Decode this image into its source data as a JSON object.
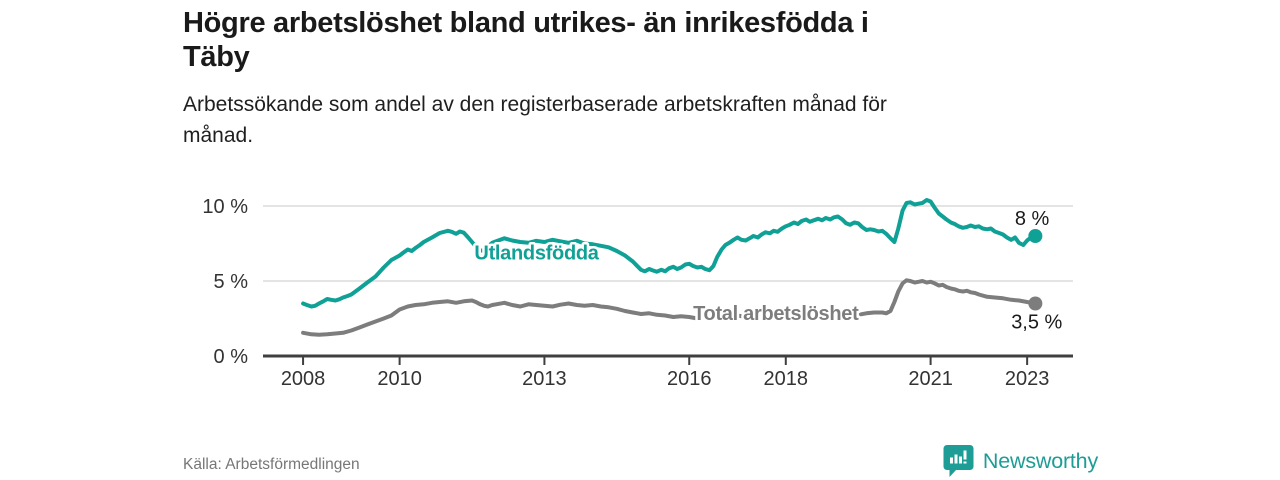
{
  "header": {
    "title_lines": [
      "Högre arbetslöshet bland utrikes- än inrikesfödda i",
      "Täby"
    ],
    "subtitle_lines": [
      "Arbetssökande som andel av den registerbaserade arbetskraften månad för",
      "månad."
    ]
  },
  "chart_data": {
    "type": "line",
    "title": "Högre arbetslöshet bland utrikes- än inrikesfödda i Täby",
    "xlabel": "",
    "ylabel": "",
    "xlim": [
      2007.17,
      2023.95
    ],
    "ylim": [
      0,
      10
    ],
    "grid": "horizontal-only",
    "legend_position": "inline-labels",
    "yticks": [
      {
        "value": 0,
        "label": "0 %"
      },
      {
        "value": 5,
        "label": "5 %"
      },
      {
        "value": 10,
        "label": "10 %"
      }
    ],
    "xticks": [
      {
        "value": 2008,
        "label": "2008"
      },
      {
        "value": 2010,
        "label": "2010"
      },
      {
        "value": 2013,
        "label": "2013"
      },
      {
        "value": 2016,
        "label": "2016"
      },
      {
        "value": 2018,
        "label": "2018"
      },
      {
        "value": 2021,
        "label": "2021"
      },
      {
        "value": 2023,
        "label": "2023"
      }
    ],
    "series": [
      {
        "name": "Total arbetslöshet",
        "color": "#7d7d7d",
        "inline_label": {
          "text": "Total arbetslöshet",
          "x": 2016.08,
          "y": 2.4,
          "anchor": "start"
        },
        "end_label": {
          "text": "3,5 %",
          "dx": 27,
          "dy": 25,
          "anchor": "end"
        },
        "end_value": 3.5,
        "points": [
          [
            2008.0,
            1.55
          ],
          [
            2008.17,
            1.45
          ],
          [
            2008.33,
            1.42
          ],
          [
            2008.5,
            1.45
          ],
          [
            2008.67,
            1.5
          ],
          [
            2008.83,
            1.55
          ],
          [
            2009.0,
            1.7
          ],
          [
            2009.17,
            1.9
          ],
          [
            2009.33,
            2.1
          ],
          [
            2009.5,
            2.3
          ],
          [
            2009.67,
            2.5
          ],
          [
            2009.83,
            2.7
          ],
          [
            2010.0,
            3.1
          ],
          [
            2010.17,
            3.3
          ],
          [
            2010.33,
            3.4
          ],
          [
            2010.5,
            3.45
          ],
          [
            2010.67,
            3.55
          ],
          [
            2010.83,
            3.6
          ],
          [
            2011.0,
            3.65
          ],
          [
            2011.17,
            3.55
          ],
          [
            2011.33,
            3.65
          ],
          [
            2011.5,
            3.7
          ],
          [
            2011.58,
            3.6
          ],
          [
            2011.67,
            3.45
          ],
          [
            2011.75,
            3.35
          ],
          [
            2011.83,
            3.3
          ],
          [
            2011.92,
            3.4
          ],
          [
            2012.0,
            3.45
          ],
          [
            2012.17,
            3.55
          ],
          [
            2012.33,
            3.4
          ],
          [
            2012.5,
            3.3
          ],
          [
            2012.67,
            3.45
          ],
          [
            2012.83,
            3.4
          ],
          [
            2013.0,
            3.35
          ],
          [
            2013.17,
            3.3
          ],
          [
            2013.33,
            3.42
          ],
          [
            2013.5,
            3.5
          ],
          [
            2013.67,
            3.4
          ],
          [
            2013.83,
            3.35
          ],
          [
            2014.0,
            3.4
          ],
          [
            2014.17,
            3.3
          ],
          [
            2014.33,
            3.25
          ],
          [
            2014.5,
            3.15
          ],
          [
            2014.67,
            3.0
          ],
          [
            2014.83,
            2.9
          ],
          [
            2015.0,
            2.8
          ],
          [
            2015.17,
            2.85
          ],
          [
            2015.33,
            2.75
          ],
          [
            2015.5,
            2.7
          ],
          [
            2015.67,
            2.6
          ],
          [
            2015.83,
            2.65
          ],
          [
            2016.0,
            2.6
          ],
          [
            2016.17,
            2.5
          ],
          [
            2016.33,
            2.65
          ],
          [
            2016.5,
            2.55
          ],
          [
            2016.67,
            2.6
          ],
          [
            2016.83,
            2.65
          ],
          [
            2017.0,
            2.7
          ],
          [
            2017.17,
            2.6
          ],
          [
            2017.33,
            2.65
          ],
          [
            2017.5,
            2.6
          ],
          [
            2017.67,
            2.65
          ],
          [
            2017.83,
            2.6
          ],
          [
            2018.0,
            2.65
          ],
          [
            2018.17,
            2.6
          ],
          [
            2018.33,
            2.65
          ],
          [
            2018.5,
            2.6
          ],
          [
            2018.67,
            2.7
          ],
          [
            2018.83,
            2.65
          ],
          [
            2019.0,
            2.7
          ],
          [
            2019.17,
            2.75
          ],
          [
            2019.33,
            2.8
          ],
          [
            2019.5,
            2.75
          ],
          [
            2019.67,
            2.85
          ],
          [
            2019.83,
            2.9
          ],
          [
            2020.0,
            2.9
          ],
          [
            2020.08,
            2.85
          ],
          [
            2020.17,
            3.0
          ],
          [
            2020.25,
            3.6
          ],
          [
            2020.33,
            4.3
          ],
          [
            2020.42,
            4.85
          ],
          [
            2020.5,
            5.05
          ],
          [
            2020.58,
            5.0
          ],
          [
            2020.67,
            4.9
          ],
          [
            2020.75,
            4.95
          ],
          [
            2020.83,
            5.0
          ],
          [
            2020.92,
            4.9
          ],
          [
            2021.0,
            4.95
          ],
          [
            2021.08,
            4.85
          ],
          [
            2021.17,
            4.7
          ],
          [
            2021.25,
            4.75
          ],
          [
            2021.33,
            4.6
          ],
          [
            2021.42,
            4.5
          ],
          [
            2021.5,
            4.45
          ],
          [
            2021.58,
            4.35
          ],
          [
            2021.67,
            4.3
          ],
          [
            2021.75,
            4.35
          ],
          [
            2021.83,
            4.25
          ],
          [
            2021.92,
            4.2
          ],
          [
            2022.0,
            4.1
          ],
          [
            2022.17,
            3.95
          ],
          [
            2022.33,
            3.9
          ],
          [
            2022.5,
            3.85
          ],
          [
            2022.67,
            3.75
          ],
          [
            2022.83,
            3.7
          ],
          [
            2023.0,
            3.6
          ],
          [
            2023.08,
            3.55
          ],
          [
            2023.17,
            3.5
          ]
        ]
      },
      {
        "name": "Utlandsfödda",
        "color": "#0fa096",
        "inline_label": {
          "text": "Utlandsfödda",
          "x": 2011.55,
          "y": 6.45,
          "anchor": "start"
        },
        "end_label": {
          "text": "8 %",
          "dx": 14,
          "dy": -11,
          "anchor": "end"
        },
        "end_value": 8,
        "points": [
          [
            2008.0,
            3.5
          ],
          [
            2008.08,
            3.4
          ],
          [
            2008.17,
            3.3
          ],
          [
            2008.25,
            3.35
          ],
          [
            2008.33,
            3.5
          ],
          [
            2008.42,
            3.65
          ],
          [
            2008.5,
            3.8
          ],
          [
            2008.58,
            3.75
          ],
          [
            2008.67,
            3.7
          ],
          [
            2008.75,
            3.78
          ],
          [
            2008.83,
            3.9
          ],
          [
            2008.92,
            4.0
          ],
          [
            2009.0,
            4.1
          ],
          [
            2009.17,
            4.5
          ],
          [
            2009.33,
            4.9
          ],
          [
            2009.5,
            5.3
          ],
          [
            2009.67,
            5.9
          ],
          [
            2009.83,
            6.4
          ],
          [
            2010.0,
            6.7
          ],
          [
            2010.08,
            6.9
          ],
          [
            2010.17,
            7.1
          ],
          [
            2010.25,
            7.0
          ],
          [
            2010.33,
            7.2
          ],
          [
            2010.42,
            7.4
          ],
          [
            2010.5,
            7.6
          ],
          [
            2010.67,
            7.9
          ],
          [
            2010.83,
            8.2
          ],
          [
            2011.0,
            8.35
          ],
          [
            2011.08,
            8.28
          ],
          [
            2011.17,
            8.15
          ],
          [
            2011.25,
            8.3
          ],
          [
            2011.33,
            8.22
          ],
          [
            2011.42,
            7.9
          ],
          [
            2011.5,
            7.6
          ],
          [
            2011.58,
            7.3
          ],
          [
            2011.67,
            7.05
          ],
          [
            2011.75,
            7.0
          ],
          [
            2011.83,
            7.3
          ],
          [
            2011.92,
            7.55
          ],
          [
            2012.0,
            7.65
          ],
          [
            2012.17,
            7.85
          ],
          [
            2012.33,
            7.7
          ],
          [
            2012.5,
            7.6
          ],
          [
            2012.67,
            7.55
          ],
          [
            2012.83,
            7.68
          ],
          [
            2013.0,
            7.6
          ],
          [
            2013.17,
            7.75
          ],
          [
            2013.33,
            7.65
          ],
          [
            2013.5,
            7.55
          ],
          [
            2013.67,
            7.68
          ],
          [
            2013.83,
            7.5
          ],
          [
            2014.0,
            7.45
          ],
          [
            2014.17,
            7.35
          ],
          [
            2014.33,
            7.25
          ],
          [
            2014.5,
            7.0
          ],
          [
            2014.67,
            6.7
          ],
          [
            2014.83,
            6.3
          ],
          [
            2015.0,
            5.75
          ],
          [
            2015.08,
            5.65
          ],
          [
            2015.17,
            5.8
          ],
          [
            2015.25,
            5.7
          ],
          [
            2015.33,
            5.62
          ],
          [
            2015.42,
            5.75
          ],
          [
            2015.5,
            5.65
          ],
          [
            2015.58,
            5.85
          ],
          [
            2015.67,
            5.95
          ],
          [
            2015.75,
            5.8
          ],
          [
            2015.83,
            5.9
          ],
          [
            2015.92,
            6.1
          ],
          [
            2016.0,
            6.15
          ],
          [
            2016.08,
            6.0
          ],
          [
            2016.17,
            5.9
          ],
          [
            2016.25,
            5.95
          ],
          [
            2016.33,
            5.8
          ],
          [
            2016.42,
            5.72
          ],
          [
            2016.5,
            6.0
          ],
          [
            2016.58,
            6.6
          ],
          [
            2016.67,
            7.1
          ],
          [
            2016.75,
            7.4
          ],
          [
            2016.83,
            7.55
          ],
          [
            2016.92,
            7.75
          ],
          [
            2017.0,
            7.9
          ],
          [
            2017.08,
            7.75
          ],
          [
            2017.17,
            7.7
          ],
          [
            2017.25,
            7.85
          ],
          [
            2017.33,
            8.0
          ],
          [
            2017.42,
            7.9
          ],
          [
            2017.5,
            8.1
          ],
          [
            2017.58,
            8.25
          ],
          [
            2017.67,
            8.18
          ],
          [
            2017.75,
            8.35
          ],
          [
            2017.83,
            8.28
          ],
          [
            2017.92,
            8.5
          ],
          [
            2018.0,
            8.65
          ],
          [
            2018.08,
            8.75
          ],
          [
            2018.17,
            8.9
          ],
          [
            2018.25,
            8.8
          ],
          [
            2018.33,
            9.0
          ],
          [
            2018.42,
            9.1
          ],
          [
            2018.5,
            8.95
          ],
          [
            2018.58,
            9.05
          ],
          [
            2018.67,
            9.15
          ],
          [
            2018.75,
            9.05
          ],
          [
            2018.83,
            9.2
          ],
          [
            2018.92,
            9.1
          ],
          [
            2019.0,
            9.25
          ],
          [
            2019.08,
            9.3
          ],
          [
            2019.17,
            9.1
          ],
          [
            2019.25,
            8.85
          ],
          [
            2019.33,
            8.75
          ],
          [
            2019.42,
            8.9
          ],
          [
            2019.5,
            8.85
          ],
          [
            2019.58,
            8.6
          ],
          [
            2019.67,
            8.4
          ],
          [
            2019.75,
            8.45
          ],
          [
            2019.83,
            8.4
          ],
          [
            2019.92,
            8.3
          ],
          [
            2020.0,
            8.35
          ],
          [
            2020.08,
            8.15
          ],
          [
            2020.17,
            7.85
          ],
          [
            2020.25,
            7.6
          ],
          [
            2020.33,
            8.5
          ],
          [
            2020.42,
            9.7
          ],
          [
            2020.5,
            10.2
          ],
          [
            2020.58,
            10.25
          ],
          [
            2020.67,
            10.1
          ],
          [
            2020.75,
            10.15
          ],
          [
            2020.83,
            10.2
          ],
          [
            2020.92,
            10.4
          ],
          [
            2021.0,
            10.3
          ],
          [
            2021.08,
            9.9
          ],
          [
            2021.17,
            9.5
          ],
          [
            2021.25,
            9.3
          ],
          [
            2021.33,
            9.1
          ],
          [
            2021.42,
            8.9
          ],
          [
            2021.5,
            8.8
          ],
          [
            2021.58,
            8.65
          ],
          [
            2021.67,
            8.55
          ],
          [
            2021.75,
            8.6
          ],
          [
            2021.83,
            8.7
          ],
          [
            2021.92,
            8.6
          ],
          [
            2022.0,
            8.65
          ],
          [
            2022.08,
            8.5
          ],
          [
            2022.17,
            8.45
          ],
          [
            2022.25,
            8.5
          ],
          [
            2022.33,
            8.3
          ],
          [
            2022.42,
            8.2
          ],
          [
            2022.5,
            8.1
          ],
          [
            2022.58,
            7.9
          ],
          [
            2022.67,
            7.75
          ],
          [
            2022.75,
            7.9
          ],
          [
            2022.83,
            7.55
          ],
          [
            2022.92,
            7.4
          ],
          [
            2023.0,
            7.7
          ],
          [
            2023.08,
            7.9
          ],
          [
            2023.17,
            8.0
          ]
        ]
      }
    ]
  },
  "footer": {
    "source": "Källa: Arbetsförmedlingen",
    "brand": "Newsworthy"
  },
  "colors": {
    "teal": "#0fa096",
    "gray": "#7d7d7d",
    "axis": "#3f3f3f",
    "grid": "#dcdcdc",
    "title_text": "#1a1a1a",
    "muted_text": "#777777",
    "brand_teal": "#1d9d95"
  }
}
